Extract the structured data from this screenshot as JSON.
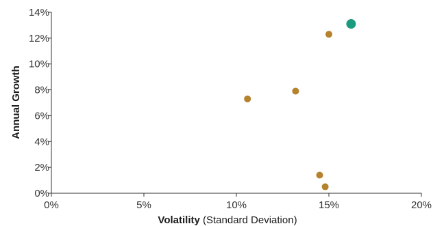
{
  "chart_data": {
    "type": "scatter",
    "xlabel_bold": "Volatility",
    "xlabel_rest": " (Standard Deviation)",
    "ylabel": "Annual Growth",
    "xlim": [
      0,
      20
    ],
    "ylim": [
      0,
      14
    ],
    "x_ticks": [
      0,
      5,
      10,
      15,
      20
    ],
    "x_tick_labels": [
      "0%",
      "5%",
      "10%",
      "15%",
      "20%"
    ],
    "y_ticks": [
      0,
      2,
      4,
      6,
      8,
      10,
      12,
      14
    ],
    "y_tick_labels": [
      "0%",
      "2%",
      "4%",
      "6%",
      "8%",
      "10%",
      "12%",
      "14%"
    ],
    "grid": false,
    "colors": {
      "default_point": "#b5822e",
      "highlight_point": "#1a9a7e"
    },
    "points": [
      {
        "x": 10.6,
        "y": 7.3,
        "highlight": false
      },
      {
        "x": 13.2,
        "y": 7.9,
        "highlight": false
      },
      {
        "x": 15.0,
        "y": 12.3,
        "highlight": false
      },
      {
        "x": 14.5,
        "y": 1.4,
        "highlight": false
      },
      {
        "x": 14.8,
        "y": 0.5,
        "highlight": false
      },
      {
        "x": 16.2,
        "y": 13.1,
        "highlight": true
      }
    ]
  }
}
